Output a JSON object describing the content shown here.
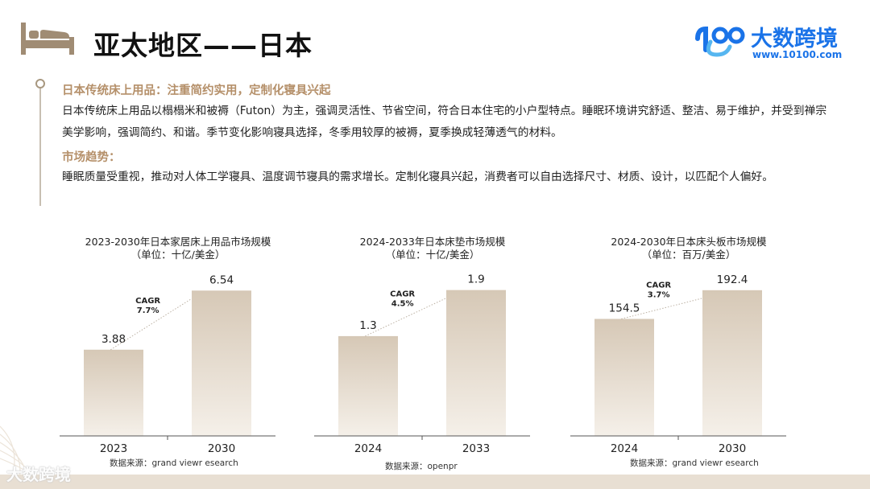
{
  "header": {
    "title": "亚太地区——日本",
    "icon": "bed-icon",
    "logo": {
      "name": "大数跨境",
      "url": "www.10100.com",
      "color": "#1a73e8"
    }
  },
  "sections": [
    {
      "heading": "日本传统床上用品：注重简约实用，定制化寝具兴起",
      "text": "日本传统床上用品以榻榻米和被褥（Futon）为主，强调灵活性、节省空间，符合日本住宅的小户型特点。睡眠环境讲究舒适、整洁、易于维护，并受到禅宗美学影响，强调简约、和谐。季节变化影响寝具选择，冬季用较厚的被褥，夏季换成轻薄透气的材料。"
    },
    {
      "heading": "市场趋势：",
      "text": "睡眠质量受重视，推动对人体工学寝具、温度调节寝具的需求增长。定制化寝具兴起，消费者可以自由选择尺寸、材质、设计，以匹配个人偏好。"
    }
  ],
  "footer": {
    "logo": "大数跨境"
  },
  "chart_data": [
    {
      "type": "bar",
      "title": "2023-2030年日本家居床上用品市场规模",
      "unit": "（单位：十亿/美金）",
      "categories": [
        "2023",
        "2030"
      ],
      "values": [
        3.88,
        6.54
      ],
      "value_labels": [
        "3.88",
        "6.54"
      ],
      "cagr_label": "CAGR",
      "cagr_value": "7.7%",
      "source": "数据来源：grand viewr esearch",
      "ylim": [
        0,
        7.6
      ]
    },
    {
      "type": "bar",
      "title": "2024-2033年日本床垫市场规模",
      "unit": "（单位：十亿/美金）",
      "categories": [
        "2024",
        "2033"
      ],
      "values": [
        1.3,
        1.9
      ],
      "value_labels": [
        "1.3",
        "1.9"
      ],
      "cagr_label": "CAGR",
      "cagr_value": "4.5%",
      "source": "数据来源：openpr",
      "ylim": [
        0,
        2.2
      ]
    },
    {
      "type": "bar",
      "title": "2024-2030年日本床头板市场规模",
      "unit": "（单位：百万/美金）",
      "categories": [
        "2024",
        "2030"
      ],
      "values": [
        154.5,
        192.4
      ],
      "value_labels": [
        "154.5",
        "192.4"
      ],
      "cagr_label": "CAGR",
      "cagr_value": "3.7%",
      "source": "数据来源：grand viewr esearch",
      "ylim": [
        0,
        223
      ]
    }
  ]
}
